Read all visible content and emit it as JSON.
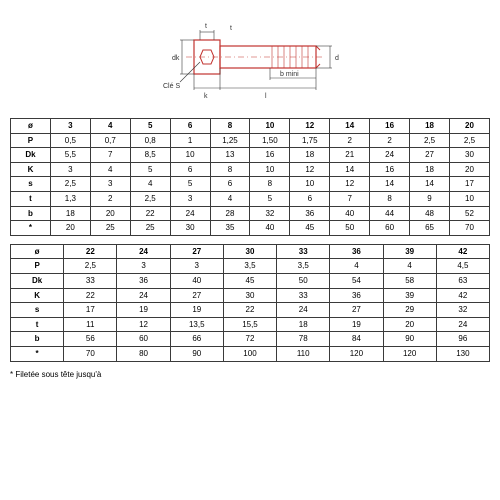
{
  "diagram": {
    "outline_color": "#c2332f",
    "dim_color": "#3a3a3a",
    "labels": {
      "t": "t",
      "dk": "dk",
      "cle": "Clé S",
      "k": "k",
      "l": "l",
      "bmini": "b mini",
      "d": "d"
    }
  },
  "table1": {
    "row_headers": [
      "ø",
      "P",
      "Dk",
      "K",
      "s",
      "t",
      "b",
      "*"
    ],
    "columns": [
      "3",
      "4",
      "5",
      "6",
      "8",
      "10",
      "12",
      "14",
      "16",
      "18",
      "20"
    ],
    "rows": [
      [
        "0,5",
        "0,7",
        "0,8",
        "1",
        "1,25",
        "1,50",
        "1,75",
        "2",
        "2",
        "2,5",
        "2,5"
      ],
      [
        "5,5",
        "7",
        "8,5",
        "10",
        "13",
        "16",
        "18",
        "21",
        "24",
        "27",
        "30"
      ],
      [
        "3",
        "4",
        "5",
        "6",
        "8",
        "10",
        "12",
        "14",
        "16",
        "18",
        "20"
      ],
      [
        "2,5",
        "3",
        "4",
        "5",
        "6",
        "8",
        "10",
        "12",
        "14",
        "14",
        "17"
      ],
      [
        "1,3",
        "2",
        "2,5",
        "3",
        "4",
        "5",
        "6",
        "7",
        "8",
        "9",
        "10"
      ],
      [
        "18",
        "20",
        "22",
        "24",
        "28",
        "32",
        "36",
        "40",
        "44",
        "48",
        "52"
      ],
      [
        "20",
        "25",
        "25",
        "30",
        "35",
        "40",
        "45",
        "50",
        "60",
        "65",
        "70"
      ]
    ]
  },
  "table2": {
    "row_headers": [
      "ø",
      "P",
      "Dk",
      "K",
      "s",
      "t",
      "b",
      "*"
    ],
    "columns": [
      "22",
      "24",
      "27",
      "30",
      "33",
      "36",
      "39",
      "42"
    ],
    "rows": [
      [
        "2,5",
        "3",
        "3",
        "3,5",
        "3,5",
        "4",
        "4",
        "4,5"
      ],
      [
        "33",
        "36",
        "40",
        "45",
        "50",
        "54",
        "58",
        "63"
      ],
      [
        "22",
        "24",
        "27",
        "30",
        "33",
        "36",
        "39",
        "42"
      ],
      [
        "17",
        "19",
        "19",
        "22",
        "24",
        "27",
        "29",
        "32"
      ],
      [
        "11",
        "12",
        "13,5",
        "15,5",
        "18",
        "19",
        "20",
        "24"
      ],
      [
        "56",
        "60",
        "66",
        "72",
        "78",
        "84",
        "90",
        "96"
      ],
      [
        "70",
        "80",
        "90",
        "100",
        "110",
        "120",
        "120",
        "130"
      ]
    ]
  },
  "footnote": "* Filetée sous tête jusqu'à",
  "colors": {
    "border": "#3a3a3a",
    "text": "#000000",
    "bg": "#ffffff"
  }
}
